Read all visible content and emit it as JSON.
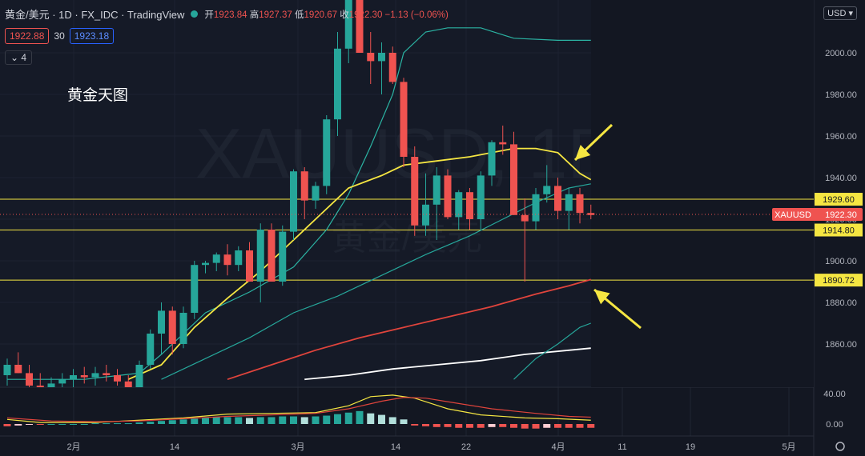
{
  "header": {
    "title": "黄金/美元 · 1D · FX_IDC · TradingView",
    "open_label": "开",
    "open": "1923.84",
    "high_label": "高",
    "high": "1927.37",
    "low_label": "低",
    "low": "1920.67",
    "close_label": "收",
    "close": "1922.30",
    "change": "−1.13 (−0.06%)",
    "sell": "1922.88",
    "spread": "30",
    "buy": "1923.18",
    "indicator_count": "4",
    "currency": "USD"
  },
  "annotation": "黄金天图",
  "watermark_symbol": "XAUUSD, 1D",
  "watermark_name": "黄金/美元",
  "colors": {
    "bg": "#131722",
    "up": "#26a69a",
    "down": "#ef5350",
    "level": "#f5e642"
  },
  "chart_data": {
    "type": "candlestick",
    "price_axis": {
      "ticks": [
        1860,
        1880,
        1900,
        1920,
        1940,
        1960,
        1980,
        2000
      ],
      "labels": [
        "1860.00",
        "1880.00",
        "1900.00",
        "1920.00",
        "1940.00",
        "1960.00",
        "1980.00",
        "2000.00"
      ],
      "range": [
        1843,
        2022
      ]
    },
    "time_axis": [
      "2月",
      "14",
      "3月",
      "14",
      "22",
      "4月",
      "11",
      "19",
      "5月"
    ],
    "horizontal_levels": [
      {
        "value": 1929.6,
        "label": "1929.60"
      },
      {
        "value": 1914.8,
        "label": "1914.80"
      },
      {
        "value": 1890.72,
        "label": "1890.72"
      }
    ],
    "last_price": {
      "symbol": "XAUUSD",
      "value": 1922.3,
      "label": "1922.30"
    },
    "candles": [
      [
        1845,
        1853,
        1840,
        1850
      ],
      [
        1850,
        1856,
        1846,
        1846
      ],
      [
        1846,
        1850,
        1836,
        1840
      ],
      [
        1840,
        1846,
        1832,
        1838
      ],
      [
        1838,
        1844,
        1835,
        1841
      ],
      [
        1841,
        1846,
        1837,
        1843
      ],
      [
        1843,
        1848,
        1839,
        1845
      ],
      [
        1845,
        1849,
        1841,
        1844
      ],
      [
        1844,
        1849,
        1840,
        1846
      ],
      [
        1846,
        1850,
        1842,
        1845
      ],
      [
        1845,
        1848,
        1840,
        1842
      ],
      [
        1842,
        1845,
        1835,
        1838
      ],
      [
        1838,
        1852,
        1836,
        1850
      ],
      [
        1850,
        1867,
        1848,
        1865
      ],
      [
        1865,
        1880,
        1855,
        1876
      ],
      [
        1876,
        1878,
        1855,
        1860
      ],
      [
        1860,
        1878,
        1858,
        1875
      ],
      [
        1875,
        1900,
        1872,
        1898
      ],
      [
        1898,
        1900,
        1894,
        1899
      ],
      [
        1899,
        1904,
        1895,
        1903
      ],
      [
        1903,
        1908,
        1893,
        1898
      ],
      [
        1898,
        1907,
        1895,
        1905
      ],
      [
        1905,
        1909,
        1890,
        1890
      ],
      [
        1890,
        1918,
        1880,
        1915
      ],
      [
        1915,
        1918,
        1890,
        1890
      ],
      [
        1890,
        1917,
        1888,
        1914
      ],
      [
        1914,
        1944,
        1910,
        1943
      ],
      [
        1943,
        1945,
        1920,
        1929
      ],
      [
        1929,
        1938,
        1925,
        1936
      ],
      [
        1936,
        1970,
        1932,
        1968
      ],
      [
        1968,
        2010,
        1960,
        2002
      ],
      [
        2002,
        2035,
        1995,
        2030
      ],
      [
        2030,
        2070,
        2000,
        2000
      ],
      [
        2000,
        2010,
        1985,
        1996
      ],
      [
        1996,
        2005,
        1980,
        2000
      ],
      [
        2000,
        2003,
        1985,
        1986
      ],
      [
        1986,
        1988,
        1945,
        1950
      ],
      [
        1950,
        1955,
        1912,
        1917
      ],
      [
        1917,
        1942,
        1912,
        1927
      ],
      [
        1927,
        1945,
        1910,
        1941
      ],
      [
        1941,
        1944,
        1920,
        1921
      ],
      [
        1921,
        1934,
        1915,
        1933
      ],
      [
        1933,
        1935,
        1915,
        1920
      ],
      [
        1920,
        1943,
        1915,
        1941
      ],
      [
        1941,
        1958,
        1936,
        1957
      ],
      [
        1957,
        1965,
        1951,
        1956
      ],
      [
        1956,
        1962,
        1922,
        1922
      ],
      [
        1922,
        1930,
        1890,
        1919
      ],
      [
        1919,
        1935,
        1915,
        1932
      ],
      [
        1932,
        1946,
        1928,
        1936
      ],
      [
        1936,
        1940,
        1920,
        1924
      ],
      [
        1924,
        1935,
        1915,
        1932
      ],
      [
        1932,
        1935,
        1918,
        1923
      ],
      [
        1923,
        1927,
        1920,
        1922
      ]
    ],
    "moving_averages": [
      {
        "name": "MA fast",
        "color": "#2bb3a3",
        "values": [
          [
            0,
            1843
          ],
          [
            7,
            1843
          ],
          [
            12,
            1846
          ],
          [
            14,
            1855
          ],
          [
            18,
            1875
          ],
          [
            22,
            1885
          ],
          [
            26,
            1897
          ],
          [
            29,
            1915
          ],
          [
            31,
            1932
          ],
          [
            33,
            1955
          ],
          [
            35,
            1980
          ],
          [
            36,
            2000
          ],
          [
            38,
            2010
          ],
          [
            40,
            2012
          ],
          [
            43,
            2012
          ],
          [
            46,
            2007
          ],
          [
            50,
            2006
          ],
          [
            53,
            2006
          ]
        ]
      },
      {
        "name": "MA yellow",
        "color": "#f5e642",
        "values": [
          [
            11,
            1843
          ],
          [
            14,
            1850
          ],
          [
            17,
            1868
          ],
          [
            20,
            1882
          ],
          [
            23,
            1895
          ],
          [
            26,
            1910
          ],
          [
            29,
            1925
          ],
          [
            31,
            1935
          ],
          [
            34,
            1941
          ],
          [
            36,
            1946
          ],
          [
            39,
            1948
          ],
          [
            42,
            1950
          ],
          [
            44,
            1952
          ],
          [
            46,
            1954
          ],
          [
            48,
            1954
          ],
          [
            50,
            1952
          ],
          [
            52,
            1942
          ],
          [
            53,
            1939
          ]
        ]
      },
      {
        "name": "MA teal",
        "color": "#26a69a",
        "values": [
          [
            14,
            1843
          ],
          [
            18,
            1853
          ],
          [
            22,
            1863
          ],
          [
            26,
            1875
          ],
          [
            30,
            1883
          ],
          [
            34,
            1893
          ],
          [
            38,
            1903
          ],
          [
            42,
            1912
          ],
          [
            45,
            1920
          ],
          [
            48,
            1928
          ],
          [
            51,
            1935
          ],
          [
            53,
            1937
          ]
        ]
      },
      {
        "name": "MA red",
        "color": "#e0443c",
        "values": [
          [
            20,
            1843
          ],
          [
            24,
            1850
          ],
          [
            28,
            1857
          ],
          [
            32,
            1863
          ],
          [
            36,
            1868
          ],
          [
            40,
            1873
          ],
          [
            44,
            1878
          ],
          [
            48,
            1884
          ],
          [
            51,
            1888
          ],
          [
            53,
            1891
          ]
        ]
      },
      {
        "name": "MA white",
        "color": "#ffffff",
        "values": [
          [
            27,
            1843
          ],
          [
            31,
            1845
          ],
          [
            35,
            1848
          ],
          [
            39,
            1850
          ],
          [
            43,
            1852
          ],
          [
            47,
            1855
          ],
          [
            51,
            1857
          ],
          [
            53,
            1858
          ]
        ]
      },
      {
        "name": "MA teal low",
        "color": "#26a69a",
        "values": [
          [
            46,
            1843
          ],
          [
            48,
            1853
          ],
          [
            50,
            1860
          ],
          [
            52,
            1868
          ],
          [
            53,
            1870
          ]
        ]
      }
    ],
    "oscillator": {
      "axis": {
        "ticks": [
          0,
          40
        ],
        "labels": [
          "0.00",
          "40.00"
        ]
      },
      "histogram": [
        -3,
        -2,
        -1,
        -1,
        0,
        0,
        0,
        0,
        1,
        1,
        1,
        1,
        2,
        3,
        4,
        5,
        6,
        7,
        8,
        9,
        9,
        9,
        8,
        9,
        9,
        10,
        10,
        9,
        10,
        11,
        13,
        15,
        17,
        14,
        12,
        9,
        6,
        -2,
        -3,
        -4,
        -4,
        -5,
        -5,
        -5,
        -4,
        -4,
        -5,
        -6,
        -6,
        -5,
        -5,
        -5,
        -5,
        -5
      ],
      "macd": [
        [
          0,
          6
        ],
        [
          3,
          2
        ],
        [
          8,
          2
        ],
        [
          12,
          5
        ],
        [
          16,
          8
        ],
        [
          20,
          13
        ],
        [
          24,
          14
        ],
        [
          28,
          15
        ],
        [
          31,
          24
        ],
        [
          33,
          36
        ],
        [
          35,
          38
        ],
        [
          37,
          34
        ],
        [
          40,
          20
        ],
        [
          43,
          12
        ],
        [
          47,
          8
        ],
        [
          50,
          7
        ],
        [
          53,
          5
        ]
      ],
      "signal": [
        [
          0,
          8
        ],
        [
          4,
          4
        ],
        [
          8,
          3
        ],
        [
          12,
          4
        ],
        [
          16,
          7
        ],
        [
          20,
          10
        ],
        [
          24,
          12
        ],
        [
          28,
          14
        ],
        [
          31,
          20
        ],
        [
          34,
          30
        ],
        [
          36,
          35
        ],
        [
          38,
          34
        ],
        [
          41,
          27
        ],
        [
          44,
          20
        ],
        [
          48,
          14
        ],
        [
          51,
          10
        ],
        [
          53,
          9
        ]
      ]
    }
  }
}
